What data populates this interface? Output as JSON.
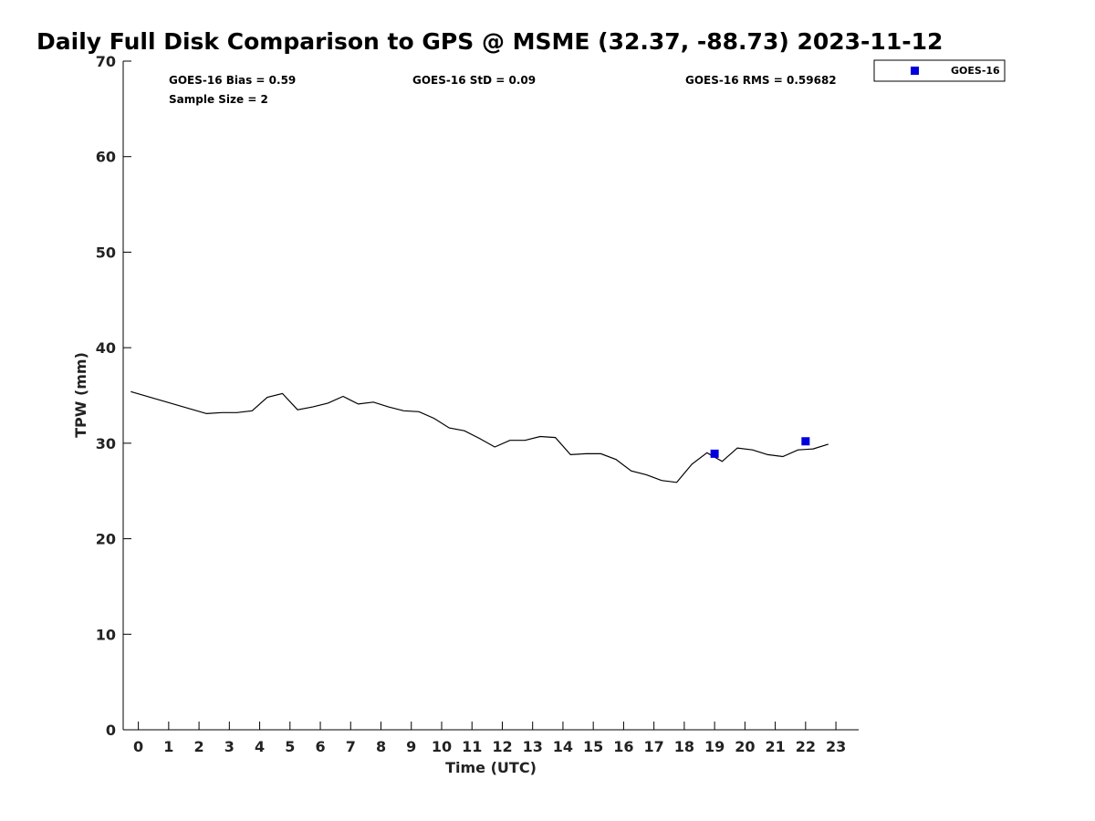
{
  "chart_data": {
    "type": "line",
    "title": "Daily Full Disk Comparison to GPS @ MSME (32.37, -88.73) 2023-11-12",
    "xlabel": "Time (UTC)",
    "ylabel": "TPW (mm)",
    "xlim": [
      -0.5,
      23.75
    ],
    "ylim": [
      0,
      70
    ],
    "x_ticks": [
      0,
      1,
      2,
      3,
      4,
      5,
      6,
      7,
      8,
      9,
      10,
      11,
      12,
      13,
      14,
      15,
      16,
      17,
      18,
      19,
      20,
      21,
      22,
      23
    ],
    "x_tick_labels": [
      "0",
      "1",
      "2",
      "3",
      "4",
      "5",
      "6",
      "7",
      "8",
      "9",
      "10",
      "11",
      "12",
      "13",
      "14",
      "15",
      "16",
      "17",
      "18",
      "19",
      "20",
      "21",
      "22",
      "23"
    ],
    "y_ticks": [
      0,
      10,
      20,
      30,
      40,
      50,
      60,
      70
    ],
    "y_tick_labels": [
      "0",
      "10",
      "20",
      "30",
      "40",
      "50",
      "60",
      "70"
    ],
    "grid": false,
    "legend_position": "outside-top-right",
    "stats": {
      "bias": "GOES-16 Bias = 0.59",
      "std": "GOES-16 StD = 0.09",
      "rms": "GOES-16 RMS = 0.59682",
      "sample": "Sample Size = 2"
    },
    "series": [
      {
        "style": "line",
        "color": "#000000",
        "points": [
          [
            -0.25,
            35.4
          ],
          [
            2.25,
            33.1
          ],
          [
            2.75,
            33.2
          ],
          [
            3.25,
            33.2
          ],
          [
            3.75,
            33.4
          ],
          [
            4.25,
            34.8
          ],
          [
            4.75,
            35.2
          ],
          [
            5.25,
            33.5
          ],
          [
            5.75,
            33.8
          ],
          [
            6.25,
            34.2
          ],
          [
            6.75,
            34.9
          ],
          [
            7.25,
            34.1
          ],
          [
            7.75,
            34.3
          ],
          [
            8.25,
            33.8
          ],
          [
            8.75,
            33.4
          ],
          [
            9.25,
            33.3
          ],
          [
            9.75,
            32.6
          ],
          [
            10.25,
            31.6
          ],
          [
            10.75,
            31.3
          ],
          [
            11.25,
            30.5
          ],
          [
            11.75,
            29.6
          ],
          [
            12.25,
            30.3
          ],
          [
            12.75,
            30.3
          ],
          [
            13.25,
            30.7
          ],
          [
            13.75,
            30.6
          ],
          [
            14.25,
            28.8
          ],
          [
            14.75,
            28.9
          ],
          [
            15.25,
            28.9
          ],
          [
            15.75,
            28.3
          ],
          [
            16.25,
            27.1
          ],
          [
            16.75,
            26.7
          ],
          [
            17.25,
            26.1
          ],
          [
            17.75,
            25.9
          ],
          [
            18.25,
            27.8
          ],
          [
            18.75,
            29.0
          ],
          [
            19.25,
            28.1
          ],
          [
            19.75,
            29.5
          ],
          [
            20.25,
            29.3
          ],
          [
            20.75,
            28.8
          ],
          [
            21.25,
            28.6
          ],
          [
            21.75,
            29.3
          ],
          [
            22.25,
            29.4
          ],
          [
            22.75,
            29.9
          ]
        ]
      },
      {
        "name": "GOES-16",
        "style": "square-marker",
        "color": "#0000dd",
        "points": [
          [
            19.0,
            28.9
          ],
          [
            22.0,
            30.2
          ]
        ]
      }
    ]
  }
}
